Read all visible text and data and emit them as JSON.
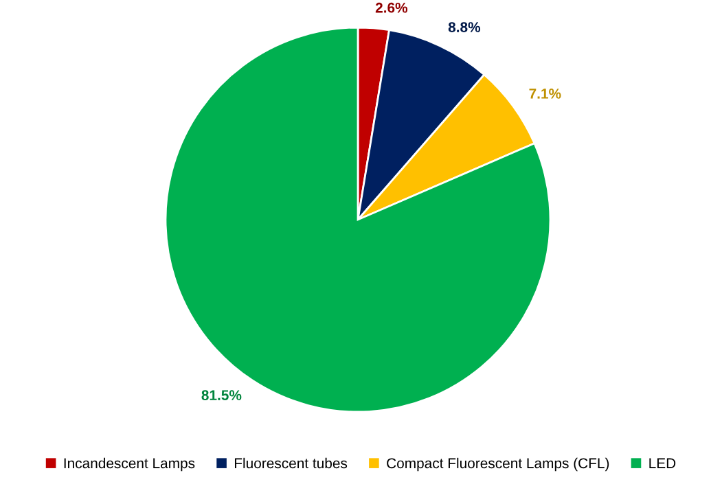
{
  "chart_data": {
    "type": "pie",
    "categories": [
      "Incandescent Lamps",
      "Fluorescent tubes",
      "Compact Fluorescent Lamps (CFL)",
      "LED"
    ],
    "values": [
      2.6,
      8.8,
      7.1,
      81.5
    ],
    "colors": [
      "#c00000",
      "#002060",
      "#ffc000",
      "#00b050"
    ],
    "value_labels": [
      "2.6%",
      "8.8%",
      "7.1%",
      "81.5%"
    ],
    "legend": "bottom"
  }
}
